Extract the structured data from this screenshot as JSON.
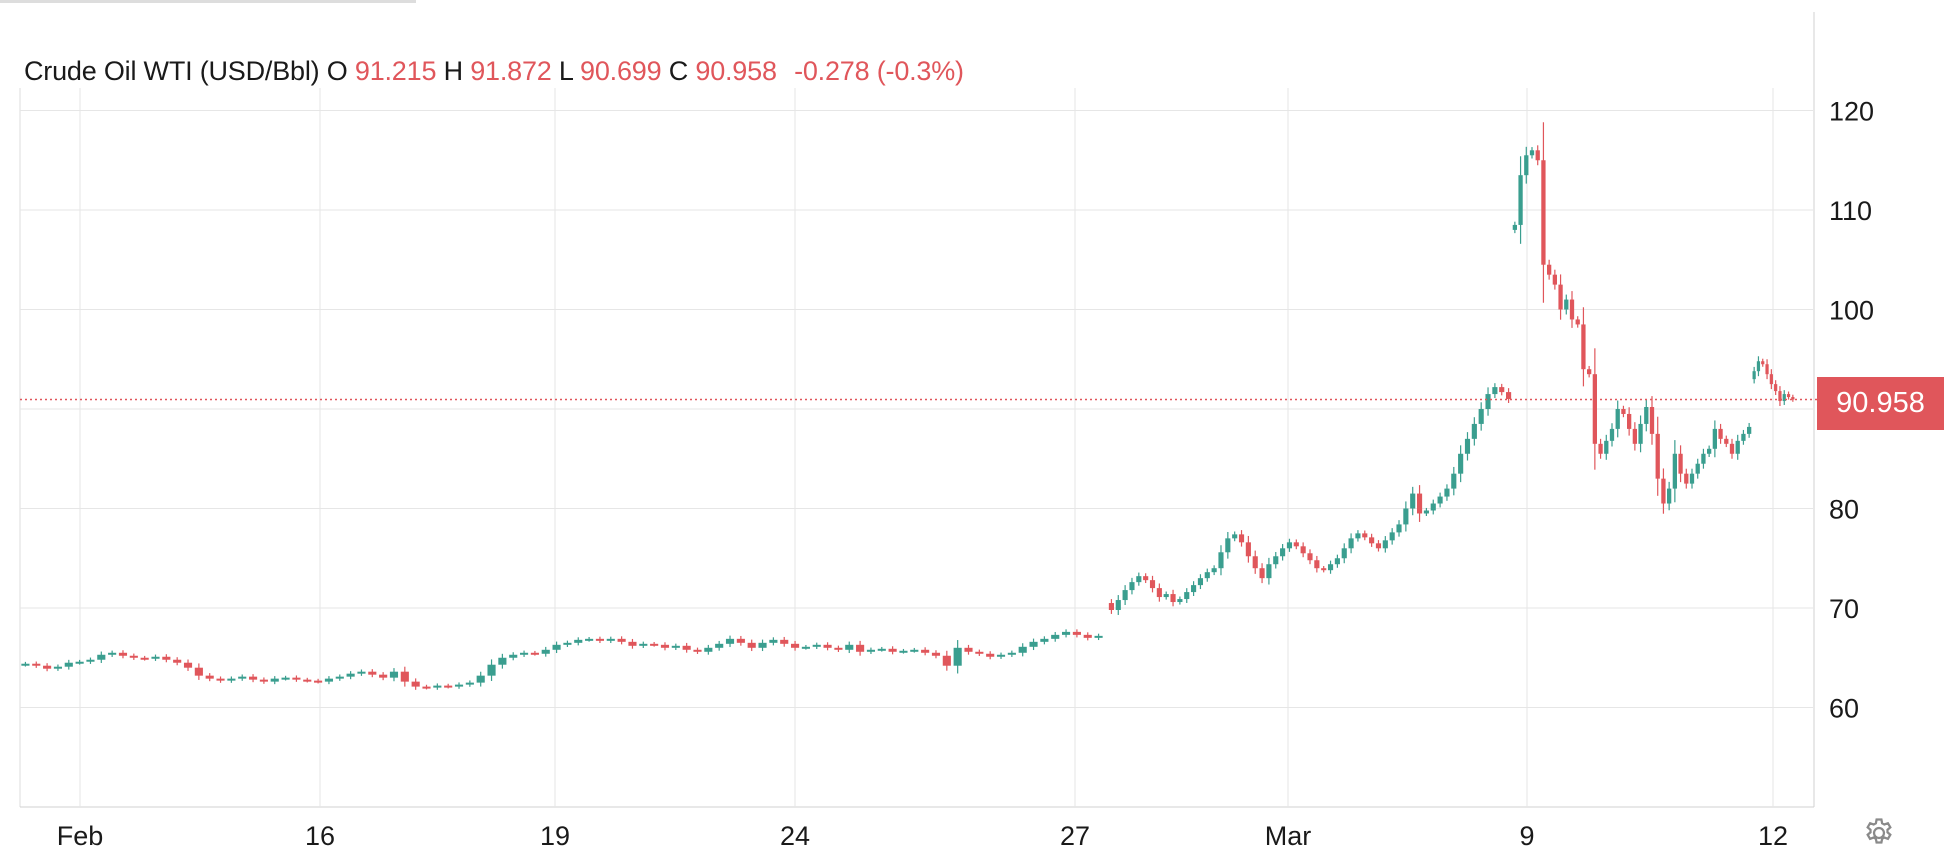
{
  "legend": {
    "instrument": "Crude Oil WTI (USD/Bbl)",
    "o_label": "O",
    "o_value": "91.215",
    "h_label": "H",
    "h_value": "91.872",
    "l_label": "L",
    "l_value": "90.699",
    "c_label": "C",
    "c_value": "90.958",
    "change": "-0.278 (-0.3%)"
  },
  "price_tag": "90.958",
  "settings_icon": "gear-icon",
  "colors": {
    "up": "#3a9e8f",
    "down": "#e0565b",
    "grid": "#e6e6e6",
    "last_price_line": "#e0565b"
  },
  "chart_data": {
    "type": "candlestick",
    "title": "Crude Oil WTI (USD/Bbl)",
    "x_tick_labels": [
      "Feb",
      "16",
      "19",
      "24",
      "27",
      "Mar",
      "9",
      "12"
    ],
    "y_ticks": [
      60,
      70,
      80,
      90,
      100,
      110,
      120
    ],
    "y_tick_labels": [
      "60",
      "70",
      "80",
      "",
      "100",
      "110",
      "120"
    ],
    "ylim": [
      50,
      122
    ],
    "last_price": 90.958,
    "grid": true,
    "series": [
      {
        "name": "Crude Oil WTI (USD/Bbl)",
        "closes_by_session": [
          [
            64.4,
            64.2,
            63.9,
            64.1,
            64.5,
            64.6,
            64.8,
            65.3,
            65.5,
            65.2,
            65.0,
            64.9,
            65.1,
            64.8,
            64.5,
            64.0,
            63.2,
            62.9,
            62.7,
            62.9,
            63.1,
            62.8,
            62.6,
            62.9,
            63.0,
            62.8,
            62.7,
            62.6,
            62.9,
            63.1,
            63.4,
            63.6,
            63.3,
            63.0,
            63.6,
            62.6,
            62.1,
            62.0,
            62.2,
            62.1,
            62.3,
            62.5,
            63.2,
            64.3,
            65.0,
            65.3,
            65.5,
            65.4,
            65.8,
            66.3,
            66.5,
            66.8,
            66.9,
            66.7,
            66.9,
            66.6,
            66.2,
            66.4,
            66.3,
            66.0,
            66.2,
            65.8,
            65.6,
            66.0,
            66.4,
            66.9,
            66.5,
            66.0,
            66.5,
            66.8,
            66.4,
            66.0,
            66.1,
            66.3,
            66.0,
            65.8,
            66.3,
            65.6,
            65.8,
            65.9,
            65.6,
            65.7,
            65.8,
            65.5,
            65.2,
            64.2,
            66.0,
            65.6,
            65.4,
            65.1,
            65.3,
            65.5,
            66.1,
            66.6,
            66.9,
            67.3,
            67.6,
            67.3,
            67.0,
            67.2
          ]
        ],
        "later_closes_by_session": [
          [
            69.8,
            70.8,
            71.8,
            72.6,
            73.2,
            72.8,
            72.0,
            71.1,
            71.4,
            70.6,
            70.9,
            71.6,
            72.3,
            73.0,
            73.6,
            74.0,
            75.6,
            77.0,
            77.4,
            76.6,
            75.2,
            74.0,
            73.0,
            74.4,
            75.2,
            76.0,
            76.6,
            76.2,
            75.5,
            74.8,
            74.0,
            73.8,
            74.4,
            75.0,
            76.0,
            77.0,
            77.5,
            77.1,
            76.5,
            76.0,
            76.8,
            77.6,
            78.4,
            80.0,
            81.5,
            79.5,
            79.8,
            80.5,
            81.2,
            82.0,
            83.5,
            85.5,
            87.0,
            88.5,
            90.0,
            91.5,
            92.2,
            91.7,
            91.0
          ],
          [
            108.5,
            113.5,
            115.5,
            116.0,
            115.0,
            104.5,
            103.5,
            102.5,
            100.0,
            101.0,
            99.0,
            98.5,
            94.0,
            93.5,
            86.5,
            85.5,
            86.8,
            88.0,
            90.0,
            89.5,
            88.0,
            86.5,
            88.5,
            90.2,
            87.5,
            83.0,
            80.5,
            82.0,
            85.5,
            83.5,
            82.5,
            83.5,
            84.5,
            85.5,
            86.0,
            88.0,
            87.0,
            86.5,
            85.5,
            86.8,
            87.5,
            88.2
          ],
          [
            93.8,
            94.8,
            94.5,
            93.5,
            92.5,
            91.8,
            90.8,
            91.5,
            91.2,
            90.958
          ]
        ]
      }
    ]
  }
}
